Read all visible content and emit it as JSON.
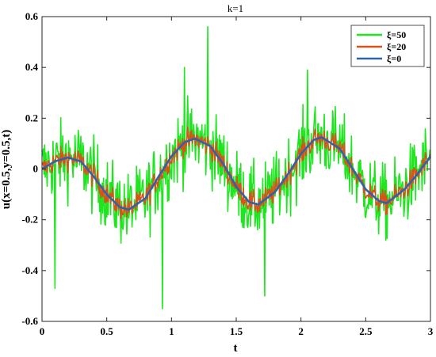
{
  "chart_data": {
    "type": "line",
    "title": "k=1",
    "xlabel": "t",
    "ylabel": "u(x=0.5,y=0.5,t)",
    "xlim": [
      0,
      3
    ],
    "ylim": [
      -0.6,
      0.6
    ],
    "xticks": [
      0,
      0.5,
      1,
      1.5,
      2,
      2.5,
      3
    ],
    "xtick_labels": [
      "0",
      "0.5",
      "1",
      "1.5",
      "2",
      "2.5",
      "3"
    ],
    "yticks": [
      -0.6,
      -0.4,
      -0.2,
      0,
      0.2,
      0.4,
      0.6
    ],
    "ytick_labels": [
      "-0.6",
      "-0.4",
      "-0.2",
      "0",
      "0.2",
      "0.4",
      "0.6"
    ],
    "grid": false,
    "legend_position": "top-right",
    "series": [
      {
        "name": "ξ=50",
        "color": "#1EE61E",
        "noise_amplitude": 0.16,
        "notable_points": [
          [
            1.28,
            0.56
          ],
          [
            0.93,
            -0.55
          ],
          [
            1.72,
            -0.5
          ],
          [
            0.1,
            -0.47
          ],
          [
            2.05,
            0.39
          ],
          [
            1.1,
            0.4
          ]
        ]
      },
      {
        "name": "ξ=20",
        "color": "#D95319",
        "noise_amplitude": 0.05
      },
      {
        "name": "ξ=0",
        "color": "#2E64A8",
        "x": [
          0,
          0.1,
          0.2,
          0.3,
          0.4,
          0.5,
          0.6,
          0.67,
          0.8,
          0.9,
          1.0,
          1.1,
          1.18,
          1.3,
          1.4,
          1.5,
          1.6,
          1.67,
          1.8,
          1.9,
          2.0,
          2.1,
          2.16,
          2.3,
          2.4,
          2.5,
          2.6,
          2.66,
          2.8,
          2.9,
          3.0
        ],
        "y": [
          0.0,
          0.03,
          0.045,
          0.03,
          -0.03,
          -0.1,
          -0.15,
          -0.16,
          -0.115,
          -0.03,
          0.05,
          0.105,
          0.12,
          0.09,
          0.02,
          -0.07,
          -0.13,
          -0.14,
          -0.09,
          -0.02,
          0.06,
          0.115,
          0.125,
          0.08,
          0.0,
          -0.08,
          -0.125,
          -0.135,
          -0.08,
          -0.02,
          0.05
        ]
      }
    ]
  }
}
